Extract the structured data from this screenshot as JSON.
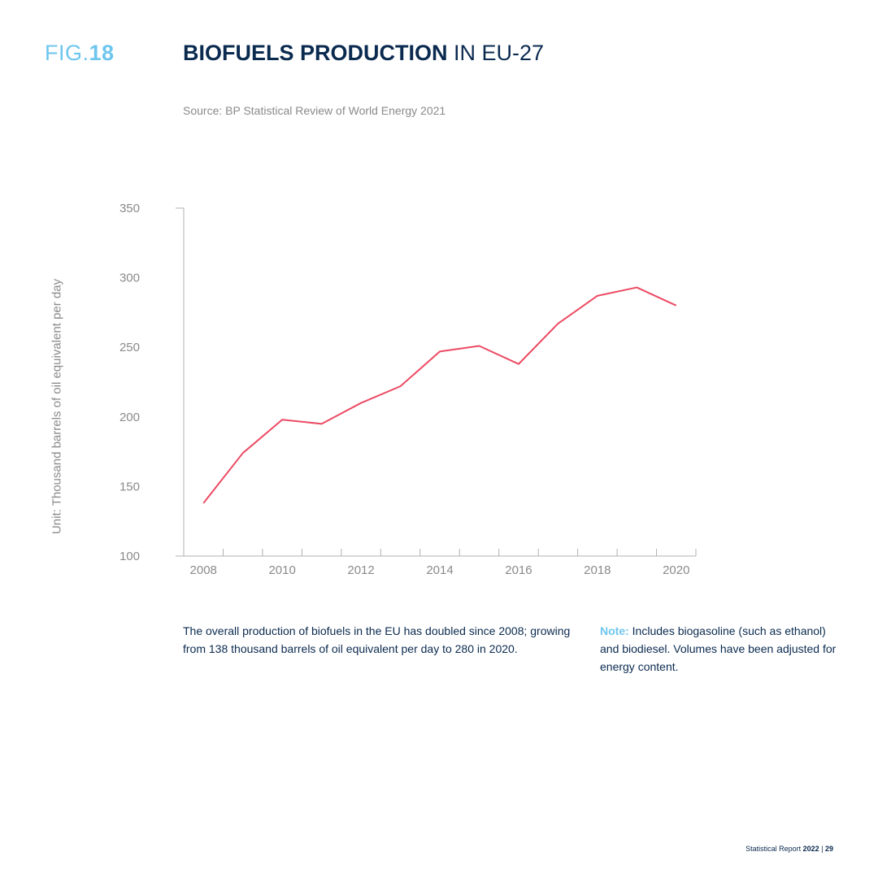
{
  "header": {
    "fig_prefix": "FIG.",
    "fig_number": "18",
    "title_bold": "BIOFUELS PRODUCTION",
    "title_rest": " IN EU-27",
    "source": "Source: BP Statistical Review of World Energy 2021"
  },
  "chart_data": {
    "type": "line",
    "title": "BIOFUELS PRODUCTION IN EU-27",
    "ylabel": "Unit: Thousand barrels of oil equivalent per day",
    "xlabel": "",
    "x": [
      2008,
      2009,
      2010,
      2011,
      2012,
      2013,
      2014,
      2015,
      2016,
      2017,
      2018,
      2019,
      2020
    ],
    "series": [
      {
        "values": [
          138,
          174,
          198,
          195,
          210,
          222,
          247,
          251,
          238,
          267,
          287,
          293,
          280
        ]
      }
    ],
    "ylim": [
      100,
      350
    ],
    "xlim": [
      2007.5,
      2020.5
    ],
    "yticks": [
      100,
      150,
      200,
      250,
      300,
      350
    ],
    "xticks": [
      2008,
      2010,
      2012,
      2014,
      2016,
      2018,
      2020
    ],
    "grid": false,
    "line_color": "#ec4a63",
    "axis_color": "#b0b0b0",
    "tick_label_color": "#8a8a8a"
  },
  "text": {
    "summary": "The overall production of biofuels in the EU has doubled since 2008; growing from 138 thousand barrels of oil equivalent per day to 280 in 2020.",
    "note_label": "Note:",
    "note_text": " Includes biogasoline (such as ethanol) and biodiesel. Volumes have been adjusted for energy content."
  },
  "footer": {
    "report": "Statistical Report ",
    "year": "2022",
    "separator": " | ",
    "page": "29"
  }
}
